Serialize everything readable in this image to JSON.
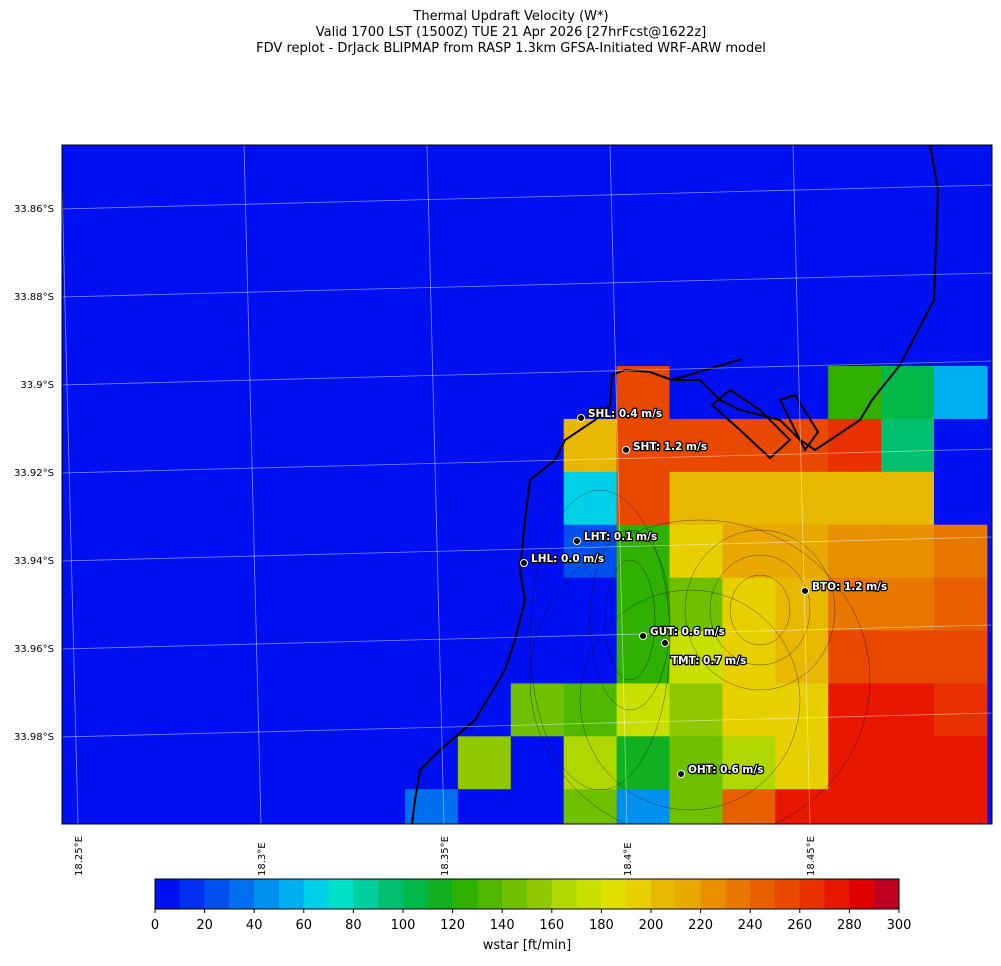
{
  "header": {
    "title": "Thermal Updraft Velocity (W*)",
    "subtitle": "Valid 1700 LST (1500Z) TUE 21 Apr 2026 [27hrFcst@1622z]",
    "source": "FDV replot - DrJack BLIPMAP from RASP 1.3km GFSA-Initiated WRF-ARW model"
  },
  "map": {
    "lat_labels": [
      "33.86°S",
      "33.88°S",
      "33.9°S",
      "33.92°S",
      "33.94°S",
      "33.96°S",
      "33.98°S"
    ],
    "lon_labels": [
      "18.25°E",
      "18.3°E",
      "18.35°E",
      "18.4°E",
      "18.45°E"
    ],
    "stations": [
      "SHL: 0.4 m/s",
      "SHT: 1.2 m/s",
      "LHT: 0.1 m/s",
      "LHL: 0.0 m/s",
      "BTO: 1.2 m/s",
      "GUT: 0.6 m/s",
      "TMT: 0.7 m/s",
      "OHT: 0.6 m/s"
    ],
    "grid": [
      [
        0,
        0,
        0,
        0,
        250,
        0,
        0,
        0,
        120,
        100,
        50
      ],
      [
        0,
        0,
        0,
        200,
        250,
        250,
        250,
        250,
        260,
        90,
        0
      ],
      [
        0,
        0,
        0,
        60,
        250,
        200,
        200,
        200,
        200,
        200,
        0
      ],
      [
        0,
        0,
        0,
        20,
        120,
        190,
        210,
        210,
        220,
        220,
        230
      ],
      [
        0,
        0,
        0,
        0,
        120,
        140,
        190,
        200,
        230,
        230,
        240
      ],
      [
        0,
        0,
        0,
        0,
        120,
        170,
        190,
        200,
        250,
        250,
        250
      ],
      [
        0,
        0,
        140,
        130,
        170,
        150,
        190,
        190,
        270,
        270,
        260
      ],
      [
        0,
        150,
        0,
        160,
        110,
        140,
        160,
        190,
        270,
        270,
        270
      ],
      [
        30,
        0,
        0,
        140,
        40,
        140,
        240,
        270,
        270,
        270,
        270
      ]
    ]
  },
  "colorbar": {
    "label": "wstar [ft/min]",
    "lim": [
      0,
      300
    ],
    "ticks": [
      0,
      20,
      40,
      60,
      80,
      100,
      120,
      140,
      160,
      180,
      200,
      220,
      240,
      260,
      280,
      300
    ],
    "colors": [
      "#0010f0",
      "#0030f0",
      "#0050f0",
      "#0070f0",
      "#0090f0",
      "#00b0f0",
      "#00d0e8",
      "#00e0c8",
      "#00d0a0",
      "#00c070",
      "#00b848",
      "#10b020",
      "#30b000",
      "#50b800",
      "#70c000",
      "#90c800",
      "#b0d800",
      "#c8e000",
      "#e0e000",
      "#e8d000",
      "#e8b800",
      "#e8a800",
      "#e89000",
      "#e87800",
      "#e86000",
      "#e84800",
      "#e83000",
      "#e81800",
      "#e00000",
      "#c00020"
    ]
  }
}
